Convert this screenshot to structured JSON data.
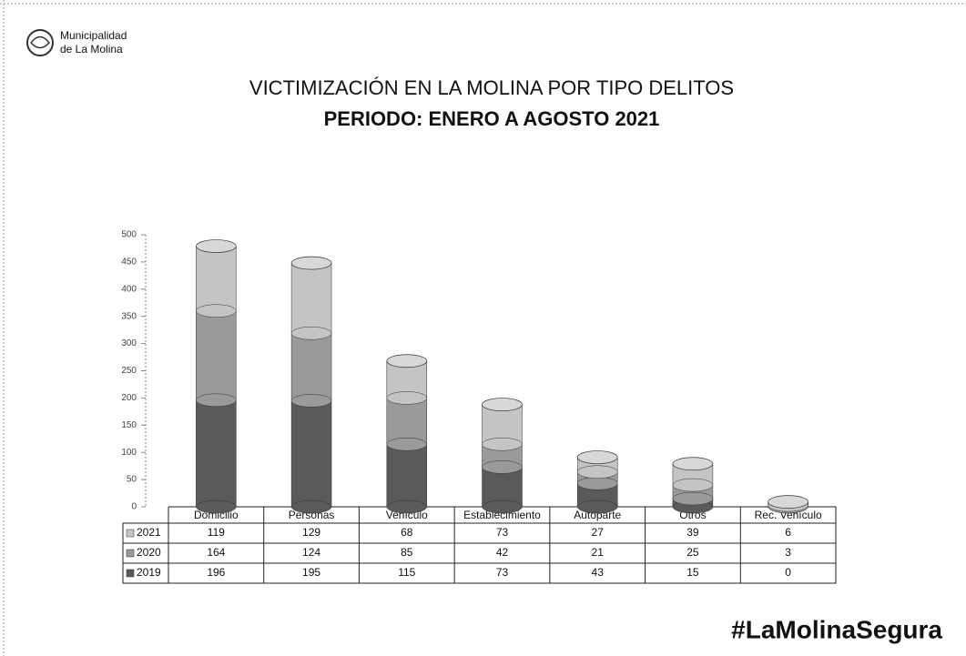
{
  "header": {
    "org_line1": "Municipalidad",
    "org_line2": "de La Molina"
  },
  "chart_data": {
    "type": "bar",
    "stacked": true,
    "title": "VICTIMIZACIÓN  EN LA MOLINA POR TIPO DELITOS",
    "subtitle": "PERIODO: ENERO A AGOSTO 2021",
    "categories": [
      "Domicilio",
      "Personas",
      "Vehículo",
      "Establecimiento",
      "Autoparte",
      "Otros",
      "Rec. Vehículo"
    ],
    "series": [
      {
        "name": "2021",
        "color": "#c4c4c4",
        "values": [
          119,
          129,
          68,
          73,
          27,
          39,
          6
        ]
      },
      {
        "name": "2020",
        "color": "#9a9a9a",
        "values": [
          164,
          124,
          85,
          42,
          21,
          25,
          3
        ]
      },
      {
        "name": "2019",
        "color": "#5a5a5a",
        "values": [
          196,
          195,
          115,
          73,
          43,
          15,
          0
        ]
      }
    ],
    "ylim": [
      0,
      500
    ],
    "yticks": [
      0,
      50,
      100,
      150,
      200,
      250,
      300,
      350,
      400,
      450,
      500
    ],
    "grid": false
  },
  "footer": {
    "hashtag": "#LaMolinaSegura"
  }
}
